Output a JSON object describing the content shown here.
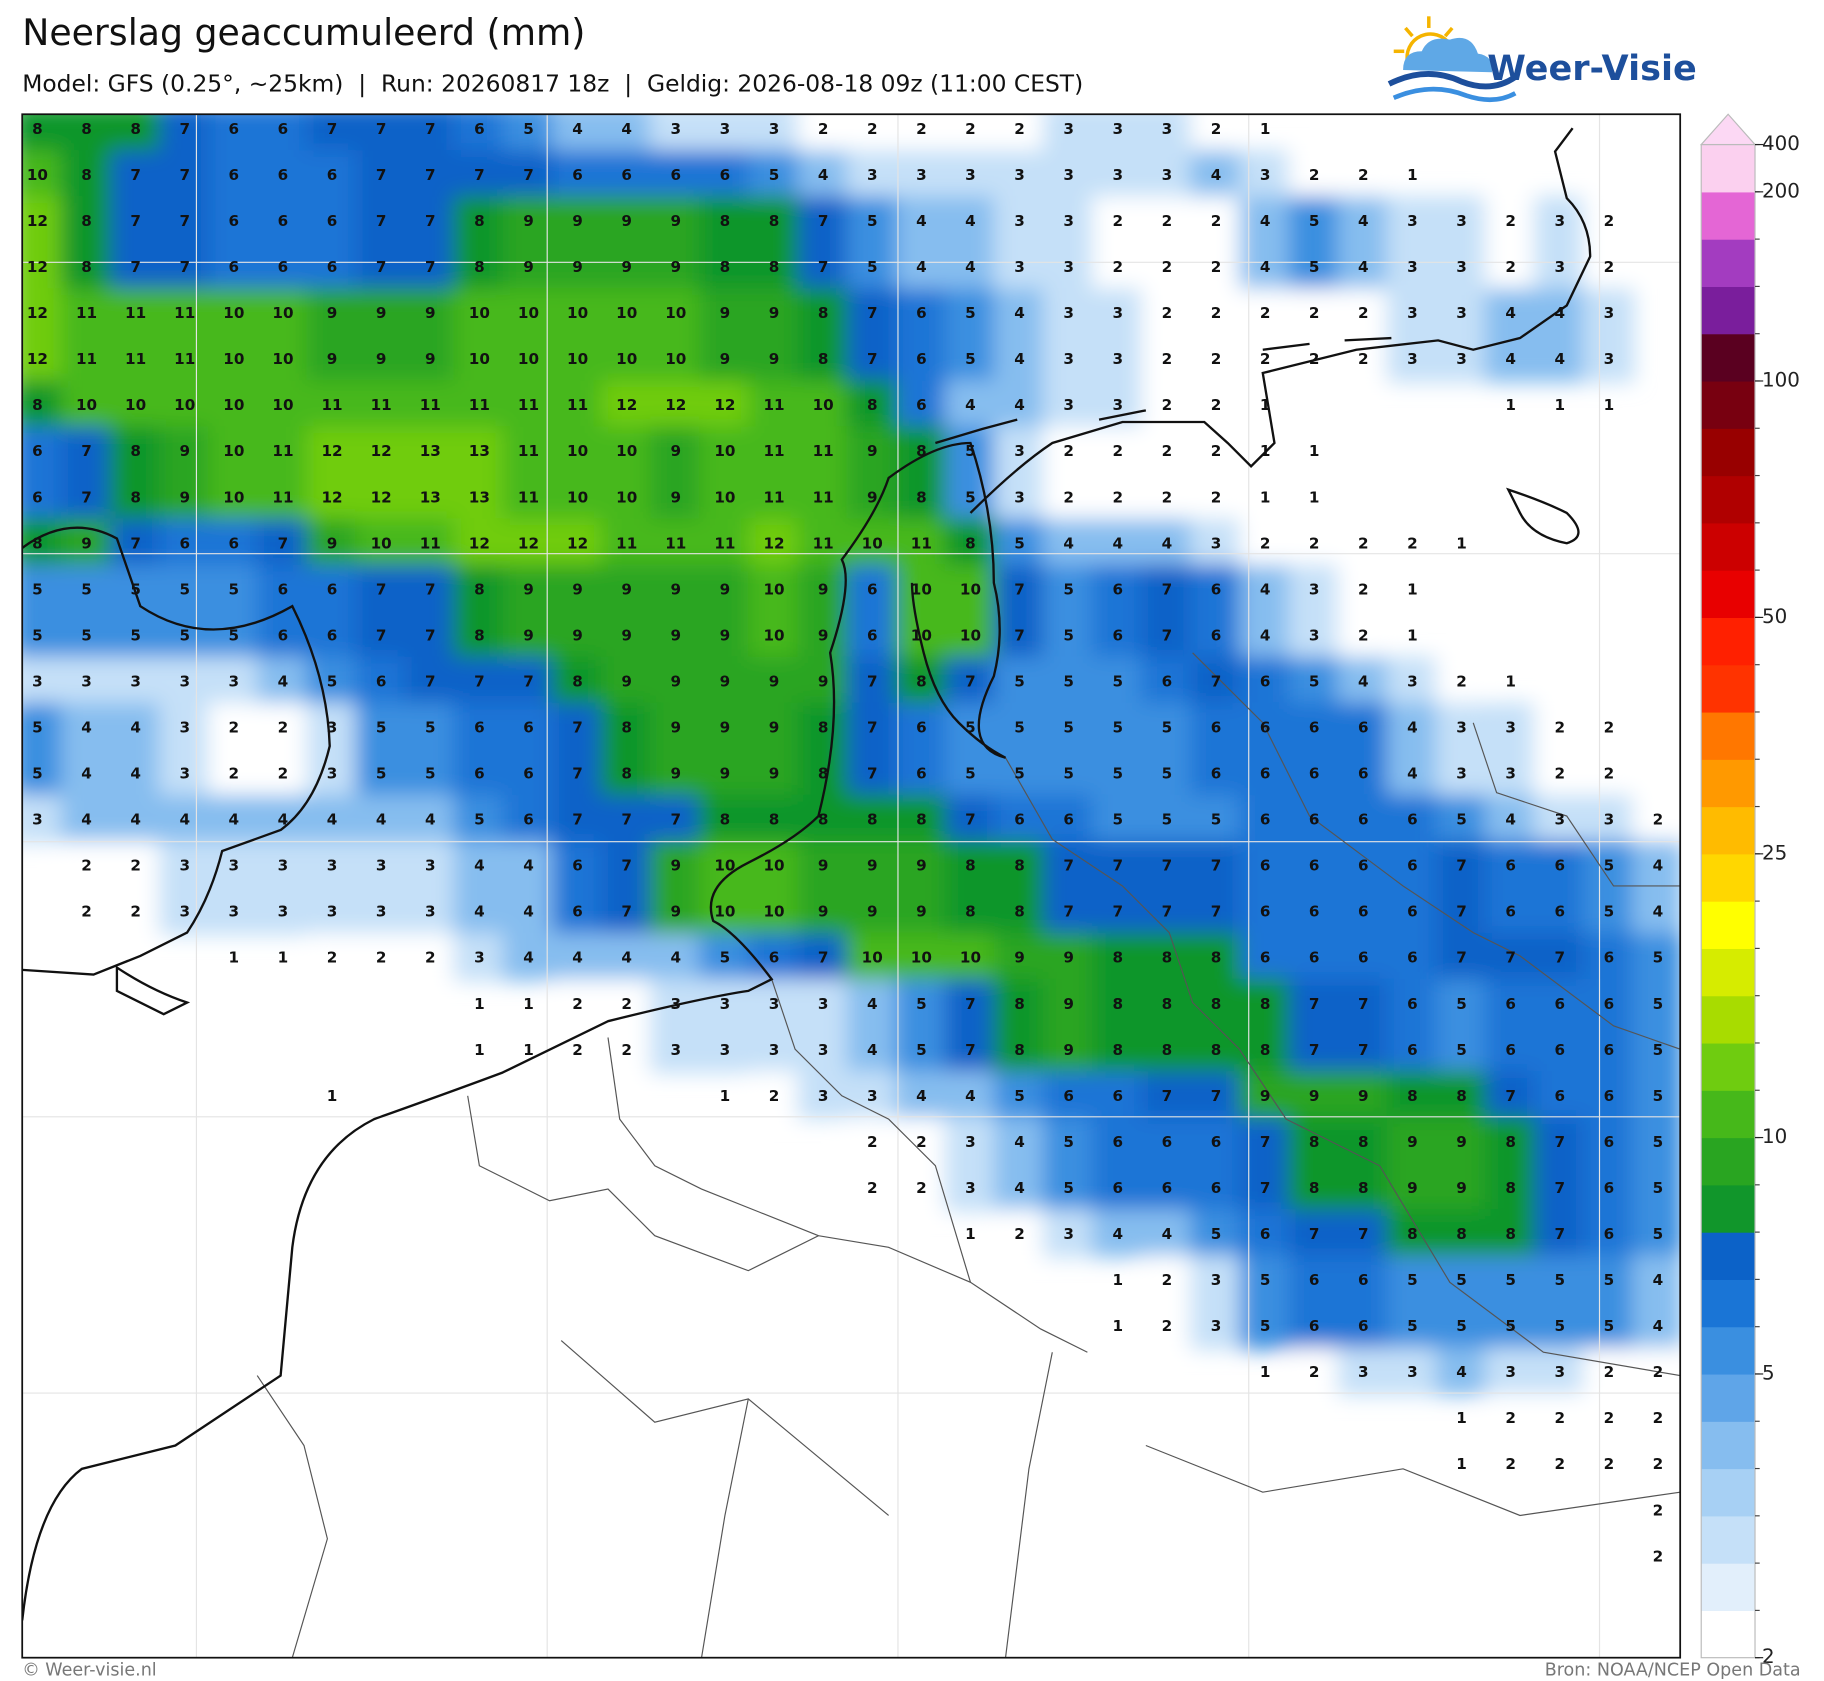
{
  "header": {
    "title": "Neerslag geaccumuleerd (mm)",
    "subtitle": "Model: GFS (0.25°, ~25km)  |  Run: 20260817 18z  |  Geldig: 2026-08-18 09z (11:00 CEST)"
  },
  "logo": {
    "text": "Weer-Visie"
  },
  "map": {
    "grid": [
      [
        8,
        8,
        8,
        7,
        6,
        6,
        7,
        7,
        7,
        6,
        5,
        4,
        4,
        3,
        3,
        3,
        2,
        2,
        2,
        2,
        2,
        3,
        3,
        3,
        2,
        1,
        null,
        null,
        null,
        null,
        null,
        null,
        null,
        null
      ],
      [
        10,
        8,
        7,
        7,
        6,
        6,
        6,
        7,
        7,
        7,
        7,
        6,
        6,
        6,
        6,
        5,
        4,
        3,
        3,
        3,
        3,
        3,
        3,
        3,
        4,
        3,
        2,
        2,
        1,
        null,
        null,
        null,
        null,
        null
      ],
      [
        12,
        8,
        7,
        7,
        6,
        6,
        6,
        7,
        7,
        8,
        9,
        9,
        9,
        9,
        8,
        8,
        7,
        5,
        4,
        4,
        3,
        3,
        2,
        2,
        2,
        4,
        5,
        4,
        3,
        3,
        2,
        3,
        2,
        null
      ],
      [
        12,
        8,
        7,
        7,
        6,
        6,
        6,
        7,
        7,
        8,
        9,
        9,
        9,
        9,
        8,
        8,
        7,
        5,
        4,
        4,
        3,
        3,
        2,
        2,
        2,
        4,
        5,
        4,
        3,
        3,
        2,
        3,
        2,
        null
      ],
      [
        12,
        11,
        11,
        11,
        10,
        10,
        9,
        9,
        9,
        10,
        10,
        10,
        10,
        10,
        9,
        9,
        8,
        7,
        6,
        5,
        4,
        3,
        3,
        2,
        2,
        2,
        2,
        2,
        3,
        3,
        4,
        4,
        3,
        null
      ],
      [
        12,
        11,
        11,
        11,
        10,
        10,
        9,
        9,
        9,
        10,
        10,
        10,
        10,
        10,
        9,
        9,
        8,
        7,
        6,
        5,
        4,
        3,
        3,
        2,
        2,
        2,
        2,
        2,
        3,
        3,
        4,
        4,
        3,
        null
      ],
      [
        8,
        10,
        10,
        10,
        10,
        10,
        11,
        11,
        11,
        11,
        11,
        11,
        12,
        12,
        12,
        11,
        10,
        8,
        6,
        4,
        4,
        3,
        3,
        2,
        2,
        1,
        null,
        null,
        null,
        null,
        1,
        1,
        1,
        null
      ],
      [
        6,
        7,
        8,
        9,
        10,
        11,
        12,
        12,
        13,
        13,
        11,
        10,
        10,
        9,
        10,
        11,
        11,
        9,
        8,
        5,
        3,
        2,
        2,
        2,
        2,
        1,
        1,
        null,
        null,
        null,
        null,
        null,
        null,
        null
      ],
      [
        6,
        7,
        8,
        9,
        10,
        11,
        12,
        12,
        13,
        13,
        11,
        10,
        10,
        9,
        10,
        11,
        11,
        9,
        8,
        5,
        3,
        2,
        2,
        2,
        2,
        1,
        1,
        null,
        null,
        null,
        null,
        null,
        null,
        null
      ],
      [
        8,
        9,
        7,
        6,
        6,
        7,
        9,
        10,
        11,
        12,
        12,
        12,
        11,
        11,
        11,
        12,
        11,
        10,
        11,
        8,
        5,
        4,
        4,
        4,
        3,
        2,
        2,
        2,
        2,
        1,
        null,
        null,
        null,
        null
      ],
      [
        5,
        5,
        5,
        5,
        5,
        6,
        6,
        7,
        7,
        8,
        9,
        9,
        9,
        9,
        9,
        10,
        9,
        6,
        10,
        10,
        7,
        5,
        6,
        7,
        6,
        4,
        3,
        2,
        1,
        null,
        null,
        null,
        null,
        null
      ],
      [
        5,
        5,
        5,
        5,
        5,
        6,
        6,
        7,
        7,
        8,
        9,
        9,
        9,
        9,
        9,
        10,
        9,
        6,
        10,
        10,
        7,
        5,
        6,
        7,
        6,
        4,
        3,
        2,
        1,
        null,
        null,
        null,
        null,
        null
      ],
      [
        3,
        3,
        3,
        3,
        3,
        4,
        5,
        6,
        7,
        7,
        7,
        8,
        9,
        9,
        9,
        9,
        9,
        7,
        8,
        7,
        5,
        5,
        5,
        6,
        7,
        6,
        5,
        4,
        3,
        2,
        1,
        null,
        null,
        null
      ],
      [
        5,
        4,
        4,
        3,
        2,
        2,
        3,
        5,
        5,
        6,
        6,
        7,
        8,
        9,
        9,
        9,
        8,
        7,
        6,
        5,
        5,
        5,
        5,
        5,
        6,
        6,
        6,
        6,
        4,
        3,
        3,
        2,
        2,
        null
      ],
      [
        5,
        4,
        4,
        3,
        2,
        2,
        3,
        5,
        5,
        6,
        6,
        7,
        8,
        9,
        9,
        9,
        8,
        7,
        6,
        5,
        5,
        5,
        5,
        5,
        6,
        6,
        6,
        6,
        4,
        3,
        3,
        2,
        2,
        null
      ],
      [
        3,
        4,
        4,
        4,
        4,
        4,
        4,
        4,
        4,
        5,
        6,
        7,
        7,
        7,
        8,
        8,
        8,
        8,
        8,
        7,
        6,
        6,
        5,
        5,
        5,
        6,
        6,
        6,
        6,
        5,
        4,
        3,
        3,
        2
      ],
      [
        null,
        2,
        2,
        3,
        3,
        3,
        3,
        3,
        3,
        4,
        4,
        6,
        7,
        9,
        10,
        10,
        9,
        9,
        9,
        8,
        8,
        7,
        7,
        7,
        7,
        6,
        6,
        6,
        6,
        7,
        6,
        6,
        5,
        4
      ],
      [
        null,
        2,
        2,
        3,
        3,
        3,
        3,
        3,
        3,
        4,
        4,
        6,
        7,
        9,
        10,
        10,
        9,
        9,
        9,
        8,
        8,
        7,
        7,
        7,
        7,
        6,
        6,
        6,
        6,
        7,
        6,
        6,
        5,
        4
      ],
      [
        null,
        null,
        null,
        null,
        1,
        1,
        2,
        2,
        2,
        3,
        4,
        4,
        4,
        4,
        5,
        6,
        7,
        10,
        10,
        10,
        9,
        9,
        8,
        8,
        8,
        6,
        6,
        6,
        6,
        7,
        7,
        7,
        6,
        5
      ],
      [
        null,
        null,
        null,
        null,
        null,
        null,
        null,
        null,
        null,
        1,
        1,
        2,
        2,
        3,
        3,
        3,
        3,
        4,
        5,
        7,
        8,
        9,
        8,
        8,
        8,
        8,
        7,
        7,
        6,
        5,
        6,
        6,
        6,
        5
      ],
      [
        null,
        null,
        null,
        null,
        null,
        null,
        null,
        null,
        null,
        1,
        1,
        2,
        2,
        3,
        3,
        3,
        3,
        4,
        5,
        7,
        8,
        9,
        8,
        8,
        8,
        8,
        7,
        7,
        6,
        5,
        6,
        6,
        6,
        5
      ],
      [
        null,
        null,
        null,
        null,
        null,
        null,
        1,
        null,
        null,
        null,
        null,
        null,
        null,
        null,
        1,
        2,
        3,
        3,
        4,
        4,
        5,
        6,
        6,
        7,
        7,
        9,
        9,
        9,
        8,
        8,
        7,
        6,
        6,
        5
      ],
      [
        null,
        null,
        null,
        null,
        null,
        null,
        null,
        null,
        null,
        null,
        null,
        null,
        null,
        null,
        null,
        null,
        null,
        2,
        2,
        3,
        4,
        5,
        6,
        6,
        6,
        7,
        8,
        8,
        9,
        9,
        8,
        7,
        6,
        5
      ],
      [
        null,
        null,
        null,
        null,
        null,
        null,
        null,
        null,
        null,
        null,
        null,
        null,
        null,
        null,
        null,
        null,
        null,
        2,
        2,
        3,
        4,
        5,
        6,
        6,
        6,
        7,
        8,
        8,
        9,
        9,
        8,
        7,
        6,
        5
      ],
      [
        null,
        null,
        null,
        null,
        null,
        null,
        null,
        null,
        null,
        null,
        null,
        null,
        null,
        null,
        null,
        null,
        null,
        null,
        null,
        1,
        2,
        3,
        4,
        4,
        5,
        6,
        7,
        7,
        8,
        8,
        8,
        7,
        6,
        5
      ],
      [
        null,
        null,
        null,
        null,
        null,
        null,
        null,
        null,
        null,
        null,
        null,
        null,
        null,
        null,
        null,
        null,
        null,
        null,
        null,
        null,
        null,
        null,
        1,
        2,
        3,
        5,
        6,
        6,
        5,
        5,
        5,
        5,
        5,
        4
      ],
      [
        null,
        null,
        null,
        null,
        null,
        null,
        null,
        null,
        null,
        null,
        null,
        null,
        null,
        null,
        null,
        null,
        null,
        null,
        null,
        null,
        null,
        null,
        1,
        2,
        3,
        5,
        6,
        6,
        5,
        5,
        5,
        5,
        5,
        4
      ],
      [
        null,
        null,
        null,
        null,
        null,
        null,
        null,
        null,
        null,
        null,
        null,
        null,
        null,
        null,
        null,
        null,
        null,
        null,
        null,
        null,
        null,
        null,
        null,
        null,
        null,
        1,
        2,
        3,
        3,
        4,
        3,
        3,
        2,
        2
      ],
      [
        null,
        null,
        null,
        null,
        null,
        null,
        null,
        null,
        null,
        null,
        null,
        null,
        null,
        null,
        null,
        null,
        null,
        null,
        null,
        null,
        null,
        null,
        null,
        null,
        null,
        null,
        null,
        null,
        null,
        1,
        2,
        2,
        2,
        2
      ],
      [
        null,
        null,
        null,
        null,
        null,
        null,
        null,
        null,
        null,
        null,
        null,
        null,
        null,
        null,
        null,
        null,
        null,
        null,
        null,
        null,
        null,
        null,
        null,
        null,
        null,
        null,
        null,
        null,
        null,
        1,
        2,
        2,
        2,
        2
      ],
      [
        null,
        null,
        null,
        null,
        null,
        null,
        null,
        null,
        null,
        null,
        null,
        null,
        null,
        null,
        null,
        null,
        null,
        null,
        null,
        null,
        null,
        null,
        null,
        null,
        null,
        null,
        null,
        null,
        null,
        null,
        null,
        null,
        null,
        2
      ],
      [
        null,
        null,
        null,
        null,
        null,
        null,
        null,
        null,
        null,
        null,
        null,
        null,
        null,
        null,
        null,
        null,
        null,
        null,
        null,
        null,
        null,
        null,
        null,
        null,
        null,
        null,
        null,
        null,
        null,
        null,
        null,
        null,
        null,
        2
      ]
    ],
    "colorbar": {
      "levels": [
        2,
        2.5,
        3,
        3.5,
        4,
        4.5,
        5,
        6,
        7,
        8,
        9,
        10,
        12,
        14,
        16,
        18,
        20,
        25,
        30,
        35,
        40,
        45,
        50,
        60,
        70,
        80,
        90,
        100,
        125,
        150,
        175,
        200,
        400
      ],
      "colors": [
        "#ffffff",
        "#e2effb",
        "#c5e0f8",
        "#a7d0f4",
        "#86bdef",
        "#5fa5e8",
        "#3a8fe0",
        "#1a75d6",
        "#0c62c8",
        "#11962b",
        "#29a521",
        "#46b81a",
        "#6fcc10",
        "#a8dc00",
        "#d6ec00",
        "#ffff00",
        "#ffd700",
        "#ffbb00",
        "#ff9900",
        "#ff7700",
        "#ff3300",
        "#ff2000",
        "#e80000",
        "#cc0000",
        "#b00000",
        "#980000",
        "#780010",
        "#5a0020",
        "#7a1e9c",
        "#a33cc0",
        "#e466d5",
        "#fbd0ef"
      ],
      "extend_color": "#fcd8f4",
      "ticks": [
        2,
        5,
        10,
        25,
        50,
        100,
        200,
        400
      ]
    }
  },
  "footer": {
    "left": "© Weer-visie.nl",
    "right": "Bron: NOAA/NCEP Open Data"
  }
}
